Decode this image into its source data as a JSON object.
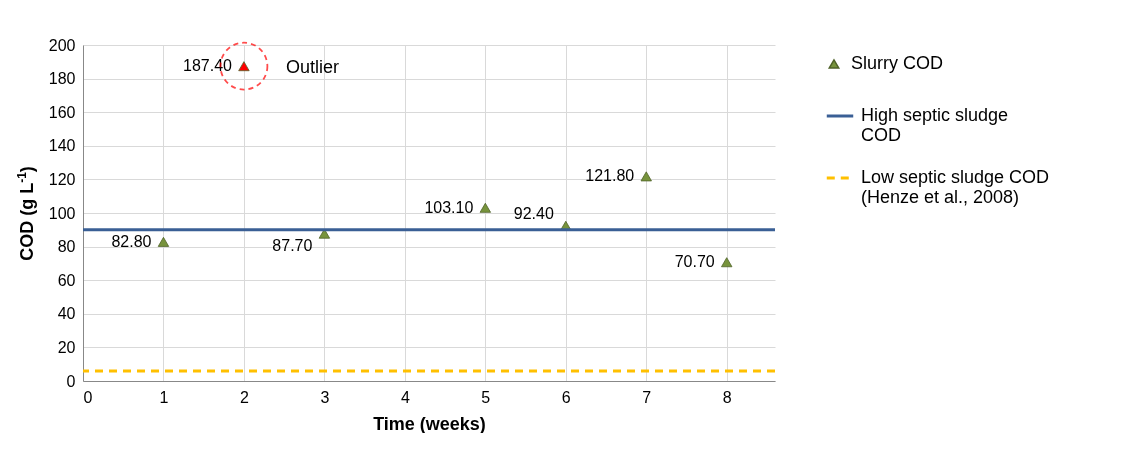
{
  "chart_data": {
    "type": "scatter",
    "xlabel": "Time (weeks)",
    "ylabel": "COD (g L$^{-1}$)",
    "x": [
      1,
      2,
      3,
      5,
      6,
      7,
      8
    ],
    "series": [
      {
        "name": "Slurry COD",
        "color": "#77933c",
        "colors": [
          "#77933c",
          "#ff0000",
          "#77933c",
          "#77933c",
          "#77933c",
          "#77933c",
          "#77933c"
        ],
        "values": [
          82.8,
          187.4,
          87.7,
          103.1,
          92.4,
          121.8,
          70.7
        ],
        "value_labels": [
          "82.80",
          "187.40",
          "87.70",
          "103.10",
          "92.40",
          "121.80",
          "70.70"
        ]
      }
    ],
    "ref_lines": [
      {
        "axis": "y",
        "value": 90,
        "label": "High septic sludge COD",
        "color": "#3a5f95",
        "line_style": "solid"
      },
      {
        "axis": "y",
        "value": 6,
        "label": "Low septic sludge COD (Henze et al., 2008)",
        "color": "#ffc000",
        "line_style": "dashed"
      }
    ],
    "annotations": [
      {
        "text": "Outlier",
        "x": 2,
        "y": 187.4
      }
    ],
    "xlim": [
      0,
      8.6
    ],
    "xticks": [
      0,
      1,
      2,
      3,
      4,
      5,
      6,
      7,
      8
    ],
    "ylim": [
      0,
      200
    ],
    "yticks": [
      0,
      20,
      40,
      60,
      80,
      100,
      120,
      140,
      160,
      180,
      200
    ],
    "grid": true,
    "legend": "right",
    "marker": "triangle"
  }
}
